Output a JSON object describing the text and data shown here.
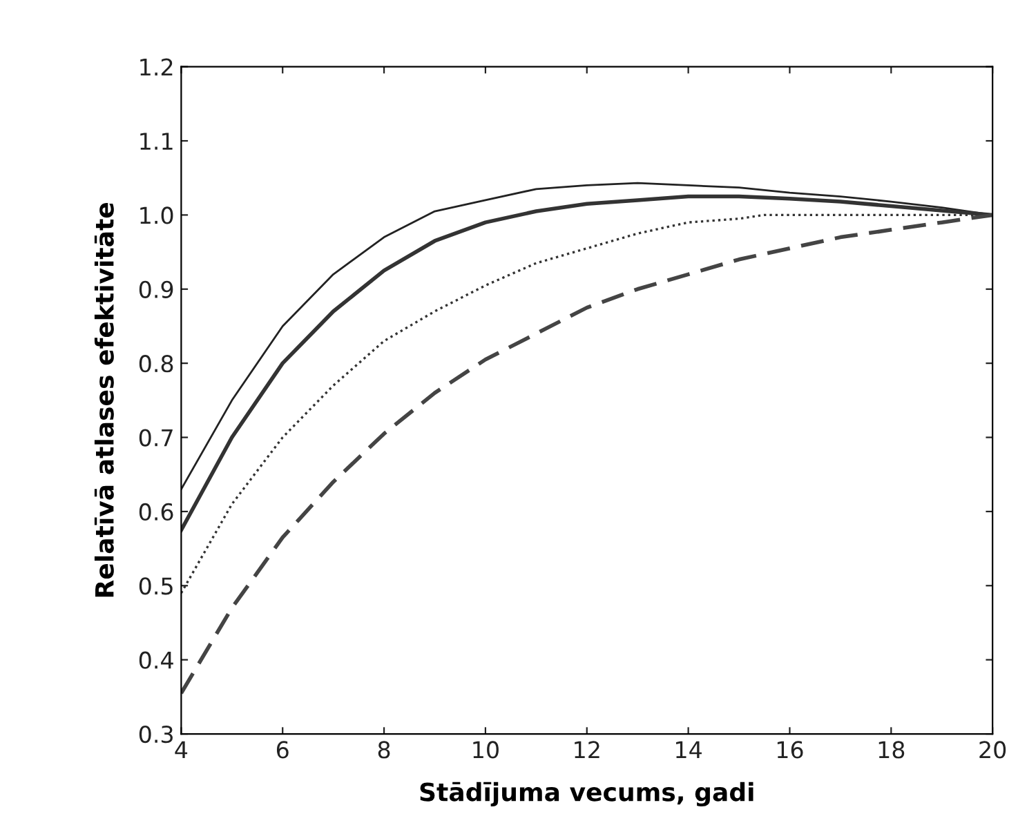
{
  "chart_data": {
    "type": "line",
    "xlabel": "Stādījuma vecums, gadi",
    "ylabel": "Relatīvā atlases efektivitāte",
    "xlim": [
      4,
      20
    ],
    "xticks": [
      4,
      6,
      8,
      10,
      12,
      14,
      16,
      18,
      20
    ],
    "ylim": [
      0.3,
      1.2
    ],
    "yticks": [
      0.3,
      0.4,
      0.5,
      0.6,
      0.7,
      0.8,
      0.9,
      {
        "value": 1.0,
        "label": "1.0"
      },
      1.1,
      1.2
    ],
    "grid": false,
    "marker": "none",
    "series": [
      {
        "color": "#222222",
        "line_style": "solid",
        "x": [
          4,
          5,
          6,
          7,
          8,
          9,
          10,
          11,
          12,
          13,
          14,
          15,
          16,
          17,
          18,
          19,
          20
        ],
        "values": [
          0.63,
          0.75,
          0.85,
          0.92,
          0.97,
          1.005,
          1.02,
          1.035,
          1.04,
          1.043,
          1.04,
          1.037,
          1.03,
          1.025,
          1.018,
          1.01,
          1.0
        ]
      },
      {
        "color": "#333333",
        "line_style": "solid",
        "x": [
          4,
          5,
          6,
          7,
          8,
          9,
          10,
          11,
          12,
          13,
          14,
          15,
          16,
          17,
          18,
          19,
          20
        ],
        "values": [
          0.575,
          0.7,
          0.8,
          0.87,
          0.925,
          0.965,
          0.99,
          1.005,
          1.015,
          1.02,
          1.025,
          1.025,
          1.022,
          1.018,
          1.012,
          1.006,
          1.0
        ]
      },
      {
        "color": "#333333",
        "line_style": "dotted",
        "x": [
          4,
          5,
          6,
          7,
          8,
          9,
          10,
          11,
          12,
          13,
          14,
          15,
          15.5,
          16,
          18,
          20
        ],
        "values": [
          0.49,
          0.61,
          0.7,
          0.77,
          0.83,
          0.87,
          0.905,
          0.935,
          0.955,
          0.975,
          0.99,
          0.995,
          1.0,
          1.0,
          1.0,
          1.0
        ]
      },
      {
        "color": "#444444",
        "line_style": "dashed",
        "x": [
          4,
          5,
          6,
          7,
          8,
          9,
          10,
          11,
          12,
          13,
          14,
          15,
          16,
          17,
          18,
          19,
          20
        ],
        "values": [
          0.355,
          0.47,
          0.565,
          0.64,
          0.705,
          0.76,
          0.805,
          0.84,
          0.875,
          0.9,
          0.92,
          0.94,
          0.955,
          0.97,
          0.98,
          0.99,
          1.0
        ]
      }
    ]
  }
}
